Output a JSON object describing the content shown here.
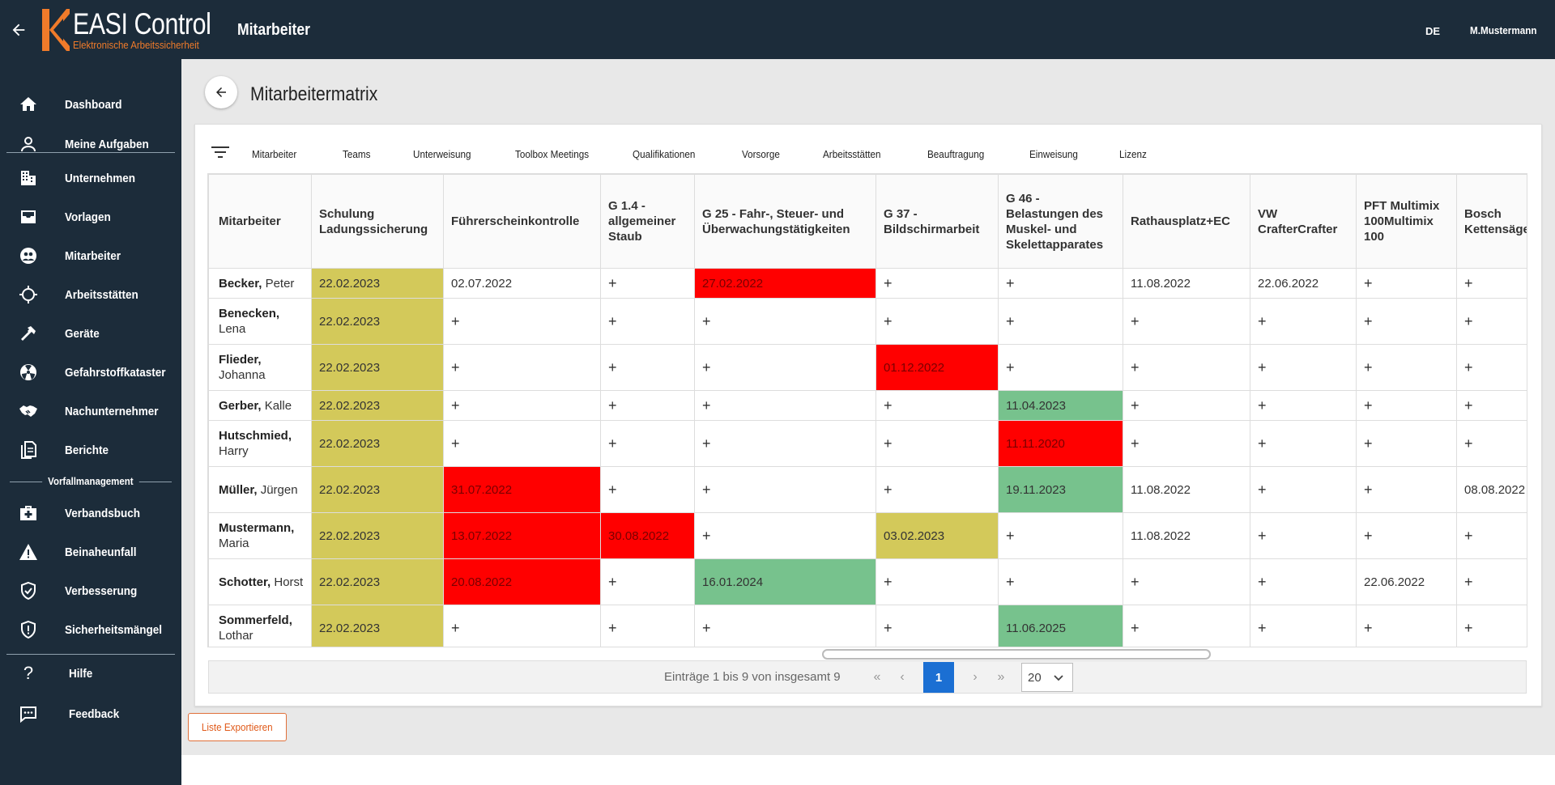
{
  "topbar": {
    "brand": "EASI Control",
    "tagline": "Elektronische Arbeitssicherheit",
    "page_title": "Mitarbeiter",
    "language": "DE",
    "user": "M.Mustermann"
  },
  "sidebar": {
    "items": [
      {
        "label": "Dashboard",
        "icon": "home-icon"
      },
      {
        "label": "Meine Aufgaben",
        "icon": "user-icon"
      },
      {
        "label": "Unternehmen",
        "icon": "building-icon"
      },
      {
        "label": "Vorlagen",
        "icon": "inbox-icon"
      },
      {
        "label": "Mitarbeiter",
        "icon": "people-icon"
      },
      {
        "label": "Arbeitsstätten",
        "icon": "crosshair-icon"
      },
      {
        "label": "Geräte",
        "icon": "hammer-icon"
      },
      {
        "label": "Gefahrstoffkataster",
        "icon": "radiation-icon"
      },
      {
        "label": "Nachunternehmer",
        "icon": "handshake-icon"
      },
      {
        "label": "Berichte",
        "icon": "documents-icon"
      },
      {
        "label": "Verbandsbuch",
        "icon": "first-aid-icon"
      },
      {
        "label": "Beinaheunfall",
        "icon": "warning-icon"
      },
      {
        "label": "Verbesserung",
        "icon": "shield-check-icon"
      },
      {
        "label": "Sicherheitsmängel",
        "icon": "shield-alert-icon"
      },
      {
        "label": "Hilfe",
        "icon": "question-icon"
      },
      {
        "label": "Feedback",
        "icon": "chat-icon"
      }
    ],
    "section_label": "Vorfallmanagement"
  },
  "header": {
    "title": "Mitarbeitermatrix"
  },
  "tabs": [
    "Mitarbeiter",
    "Teams",
    "Unterweisung",
    "Toolbox Meetings",
    "Qualifikationen",
    "Vorsorge",
    "Arbeitsstätten",
    "Beauftragung",
    "Einweisung",
    "Lizenz"
  ],
  "table": {
    "columns": [
      "Mitarbeiter",
      "Schulung Ladungssicherung",
      "Führerscheinkontrolle",
      "G 1.4 - allgemeiner Staub",
      "G 25 - Fahr-, Steuer- und Überwachungstätigkeiten",
      "G 37 - Bildschirmarbeit",
      "G 46 - Belastungen des Muskel- und Skelettapparates",
      "Rathausplatz+EC",
      "VW CrafterCrafter",
      "PFT Multimix 100Multimix 100",
      "Bosch Kettensäge"
    ],
    "rows": [
      {
        "last": "Becker,",
        "first": "Peter",
        "cells": [
          {
            "v": "22.02.2023",
            "s": "yellow"
          },
          {
            "v": "02.07.2022",
            "s": ""
          },
          {
            "v": "+",
            "s": ""
          },
          {
            "v": "27.02.2022",
            "s": "red"
          },
          {
            "v": "+",
            "s": ""
          },
          {
            "v": "+",
            "s": ""
          },
          {
            "v": "11.08.2022",
            "s": ""
          },
          {
            "v": "22.06.2022",
            "s": ""
          },
          {
            "v": "+",
            "s": ""
          },
          {
            "v": "+",
            "s": ""
          }
        ]
      },
      {
        "last": "Benecken,",
        "first": "Lena",
        "cells": [
          {
            "v": "22.02.2023",
            "s": "yellow"
          },
          {
            "v": "+",
            "s": ""
          },
          {
            "v": "+",
            "s": ""
          },
          {
            "v": "+",
            "s": ""
          },
          {
            "v": "+",
            "s": ""
          },
          {
            "v": "+",
            "s": ""
          },
          {
            "v": "+",
            "s": ""
          },
          {
            "v": "+",
            "s": ""
          },
          {
            "v": "+",
            "s": ""
          },
          {
            "v": "+",
            "s": ""
          }
        ]
      },
      {
        "last": "Flieder,",
        "first": "Johanna",
        "cells": [
          {
            "v": "22.02.2023",
            "s": "yellow"
          },
          {
            "v": "+",
            "s": ""
          },
          {
            "v": "+",
            "s": ""
          },
          {
            "v": "+",
            "s": ""
          },
          {
            "v": "01.12.2022",
            "s": "red"
          },
          {
            "v": "+",
            "s": ""
          },
          {
            "v": "+",
            "s": ""
          },
          {
            "v": "+",
            "s": ""
          },
          {
            "v": "+",
            "s": ""
          },
          {
            "v": "+",
            "s": ""
          }
        ]
      },
      {
        "last": "Gerber,",
        "first": "Kalle",
        "cells": [
          {
            "v": "22.02.2023",
            "s": "yellow"
          },
          {
            "v": "+",
            "s": ""
          },
          {
            "v": "+",
            "s": ""
          },
          {
            "v": "+",
            "s": ""
          },
          {
            "v": "+",
            "s": ""
          },
          {
            "v": "11.04.2023",
            "s": "green"
          },
          {
            "v": "+",
            "s": ""
          },
          {
            "v": "+",
            "s": ""
          },
          {
            "v": "+",
            "s": ""
          },
          {
            "v": "+",
            "s": ""
          }
        ]
      },
      {
        "last": "Hutschmied,",
        "first": "Harry",
        "cells": [
          {
            "v": "22.02.2023",
            "s": "yellow"
          },
          {
            "v": "+",
            "s": ""
          },
          {
            "v": "+",
            "s": ""
          },
          {
            "v": "+",
            "s": ""
          },
          {
            "v": "+",
            "s": ""
          },
          {
            "v": "11.11.2020",
            "s": "red"
          },
          {
            "v": "+",
            "s": ""
          },
          {
            "v": "+",
            "s": ""
          },
          {
            "v": "+",
            "s": ""
          },
          {
            "v": "+",
            "s": ""
          }
        ]
      },
      {
        "last": "Müller,",
        "first": "Jürgen",
        "cells": [
          {
            "v": "22.02.2023",
            "s": "yellow"
          },
          {
            "v": "31.07.2022",
            "s": "red"
          },
          {
            "v": "+",
            "s": ""
          },
          {
            "v": "+",
            "s": ""
          },
          {
            "v": "+",
            "s": ""
          },
          {
            "v": "19.11.2023",
            "s": "green"
          },
          {
            "v": "11.08.2022",
            "s": ""
          },
          {
            "v": "+",
            "s": ""
          },
          {
            "v": "+",
            "s": ""
          },
          {
            "v": "08.08.2022",
            "s": ""
          }
        ]
      },
      {
        "last": "Mustermann,",
        "first": "Maria",
        "cells": [
          {
            "v": "22.02.2023",
            "s": "yellow"
          },
          {
            "v": "13.07.2022",
            "s": "red"
          },
          {
            "v": "30.08.2022",
            "s": "red"
          },
          {
            "v": "+",
            "s": ""
          },
          {
            "v": "03.02.2023",
            "s": "yellow"
          },
          {
            "v": "+",
            "s": ""
          },
          {
            "v": "11.08.2022",
            "s": ""
          },
          {
            "v": "+",
            "s": ""
          },
          {
            "v": "+",
            "s": ""
          },
          {
            "v": "+",
            "s": ""
          }
        ]
      },
      {
        "last": "Schotter,",
        "first": "Horst",
        "cells": [
          {
            "v": "22.02.2023",
            "s": "yellow"
          },
          {
            "v": "20.08.2022",
            "s": "red"
          },
          {
            "v": "+",
            "s": ""
          },
          {
            "v": "16.01.2024",
            "s": "green"
          },
          {
            "v": "+",
            "s": ""
          },
          {
            "v": "+",
            "s": ""
          },
          {
            "v": "+",
            "s": ""
          },
          {
            "v": "+",
            "s": ""
          },
          {
            "v": "22.06.2022",
            "s": ""
          },
          {
            "v": "+",
            "s": ""
          }
        ]
      },
      {
        "last": "Sommerfeld,",
        "first": "Lothar",
        "cells": [
          {
            "v": "22.02.2023",
            "s": "yellow"
          },
          {
            "v": "+",
            "s": ""
          },
          {
            "v": "+",
            "s": ""
          },
          {
            "v": "+",
            "s": ""
          },
          {
            "v": "+",
            "s": ""
          },
          {
            "v": "11.06.2025",
            "s": "green"
          },
          {
            "v": "+",
            "s": ""
          },
          {
            "v": "+",
            "s": ""
          },
          {
            "v": "+",
            "s": ""
          },
          {
            "v": "+",
            "s": ""
          }
        ]
      }
    ]
  },
  "pager": {
    "info": "Einträge 1 bis 9 von insgesamt 9",
    "current_page": "1",
    "page_size": "20"
  },
  "export_label": "Liste Exportieren",
  "colors": {
    "navy": "#1c2c3a",
    "accent": "#f07b2a",
    "yellow": "#d3c95a",
    "red": "#ff0000",
    "green": "#77c28d",
    "active_page": "#1b6fd3"
  }
}
